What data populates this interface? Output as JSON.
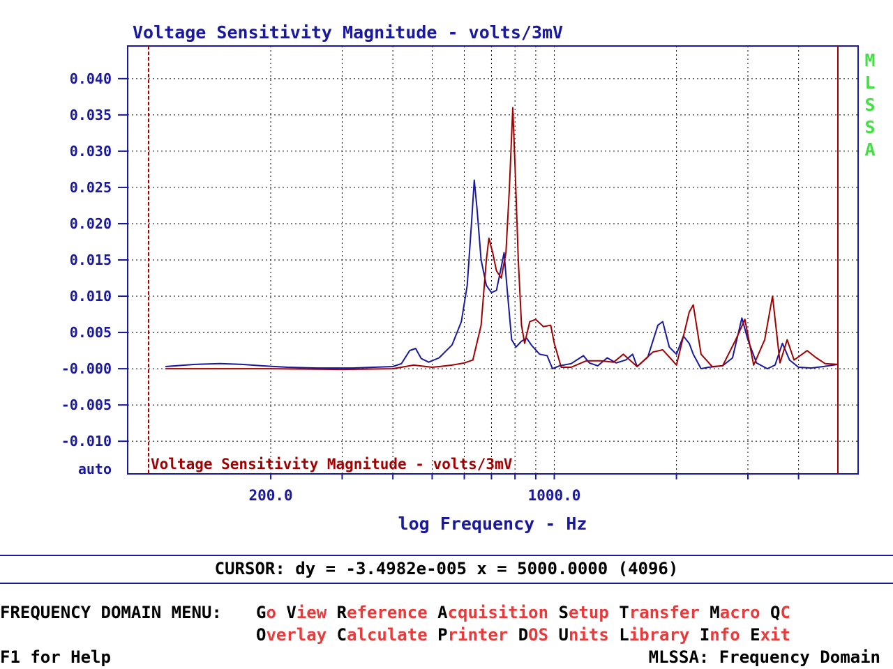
{
  "colors": {
    "blue": "#1818a0",
    "red": "#a00000",
    "green": "#40e040",
    "menu_hot": "#000000",
    "menu_rest": "#e83a3a",
    "grid": "#000000"
  },
  "brand_vertical": "MLSSA",
  "chart_data": {
    "type": "line",
    "title": "Voltage Sensitivity Magnitude - volts/3mV",
    "overlay_title": "Voltage Sensitivity Magnitude - volts/3mV",
    "xlabel": "log Frequency - Hz",
    "x_scale": "log",
    "xlim": [
      100,
      5000
    ],
    "x_ticks": [
      200,
      1000
    ],
    "x_tick_labels": [
      "200.0",
      "1000.0"
    ],
    "ylim": [
      -0.0145,
      0.0445
    ],
    "y_ticks": [
      0.04,
      0.035,
      0.03,
      0.025,
      0.02,
      0.015,
      0.01,
      0.005,
      0.0,
      -0.005,
      -0.01
    ],
    "y_tick_labels": [
      "0.040",
      "0.035",
      "0.030",
      "0.025",
      "0.020",
      "0.015",
      "0.010",
      "0.005",
      "-0.000",
      "-0.005",
      "-0.010"
    ],
    "y_bottom_label": "auto",
    "grid": true,
    "series": [
      {
        "color": "#1818a0",
        "points": [
          [
            110,
            0.0003
          ],
          [
            130,
            0.0006
          ],
          [
            150,
            0.0007
          ],
          [
            170,
            0.0006
          ],
          [
            190,
            0.0004
          ],
          [
            220,
            0.0002
          ],
          [
            260,
            0.0001
          ],
          [
            320,
            0.0001
          ],
          [
            400,
            0.0003
          ],
          [
            420,
            0.0007
          ],
          [
            440,
            0.0025
          ],
          [
            455,
            0.0028
          ],
          [
            470,
            0.0014
          ],
          [
            490,
            0.0009
          ],
          [
            520,
            0.0015
          ],
          [
            560,
            0.0033
          ],
          [
            590,
            0.0065
          ],
          [
            610,
            0.0115
          ],
          [
            625,
            0.02
          ],
          [
            635,
            0.026
          ],
          [
            645,
            0.022
          ],
          [
            660,
            0.015
          ],
          [
            680,
            0.0115
          ],
          [
            700,
            0.0105
          ],
          [
            720,
            0.0108
          ],
          [
            740,
            0.014
          ],
          [
            752,
            0.016
          ],
          [
            765,
            0.011
          ],
          [
            785,
            0.004
          ],
          [
            805,
            0.003
          ],
          [
            830,
            0.0038
          ],
          [
            855,
            0.0042
          ],
          [
            880,
            0.0032
          ],
          [
            920,
            0.002
          ],
          [
            960,
            0.0018
          ],
          [
            990,
            0.0
          ],
          [
            1030,
            0.0004
          ],
          [
            1100,
            0.0007
          ],
          [
            1180,
            0.0018
          ],
          [
            1220,
            0.0008
          ],
          [
            1280,
            0.0004
          ],
          [
            1350,
            0.0015
          ],
          [
            1420,
            0.0008
          ],
          [
            1500,
            0.0012
          ],
          [
            1560,
            0.002
          ],
          [
            1600,
            0.0003
          ],
          [
            1700,
            0.0016
          ],
          [
            1800,
            0.006
          ],
          [
            1850,
            0.0065
          ],
          [
            1920,
            0.003
          ],
          [
            2000,
            0.002
          ],
          [
            2080,
            0.0045
          ],
          [
            2150,
            0.0035
          ],
          [
            2200,
            0.002
          ],
          [
            2300,
            0.0
          ],
          [
            2400,
            0.0002
          ],
          [
            2600,
            0.0004
          ],
          [
            2750,
            0.0015
          ],
          [
            2900,
            0.007
          ],
          [
            3000,
            0.004
          ],
          [
            3150,
            0.0008
          ],
          [
            3350,
            0.0
          ],
          [
            3500,
            0.0005
          ],
          [
            3650,
            0.0035
          ],
          [
            3800,
            0.0012
          ],
          [
            4000,
            0.0002
          ],
          [
            4300,
            0.0001
          ],
          [
            4600,
            0.0003
          ],
          [
            5000,
            0.0006
          ]
        ]
      },
      {
        "color": "#a00000",
        "points": [
          [
            110,
            0.0
          ],
          [
            200,
            0.0
          ],
          [
            300,
            -0.0001
          ],
          [
            400,
            0.0
          ],
          [
            450,
            0.0005
          ],
          [
            500,
            0.0002
          ],
          [
            560,
            0.0005
          ],
          [
            600,
            0.0008
          ],
          [
            630,
            0.0012
          ],
          [
            660,
            0.006
          ],
          [
            680,
            0.015
          ],
          [
            690,
            0.018
          ],
          [
            705,
            0.016
          ],
          [
            720,
            0.0135
          ],
          [
            740,
            0.0125
          ],
          [
            760,
            0.016
          ],
          [
            775,
            0.025
          ],
          [
            790,
            0.036
          ],
          [
            800,
            0.028
          ],
          [
            815,
            0.015
          ],
          [
            830,
            0.006
          ],
          [
            845,
            0.0035
          ],
          [
            870,
            0.0065
          ],
          [
            900,
            0.0068
          ],
          [
            940,
            0.0058
          ],
          [
            980,
            0.006
          ],
          [
            1000,
            0.0035
          ],
          [
            1040,
            0.0002
          ],
          [
            1100,
            0.0002
          ],
          [
            1200,
            0.0011
          ],
          [
            1300,
            0.0011
          ],
          [
            1400,
            0.0009
          ],
          [
            1480,
            0.002
          ],
          [
            1600,
            0.0003
          ],
          [
            1750,
            0.0023
          ],
          [
            1850,
            0.0026
          ],
          [
            1950,
            0.0012
          ],
          [
            2000,
            0.0005
          ],
          [
            2150,
            0.0078
          ],
          [
            2200,
            0.0088
          ],
          [
            2300,
            0.002
          ],
          [
            2450,
            0.0003
          ],
          [
            2600,
            0.0004
          ],
          [
            2800,
            0.004
          ],
          [
            2950,
            0.0068
          ],
          [
            3100,
            0.0005
          ],
          [
            3300,
            0.004
          ],
          [
            3450,
            0.01
          ],
          [
            3600,
            0.0008
          ],
          [
            3750,
            0.004
          ],
          [
            3900,
            0.0012
          ],
          [
            4200,
            0.0025
          ],
          [
            4400,
            0.0016
          ],
          [
            4650,
            0.0007
          ],
          [
            5000,
            0.0006
          ]
        ]
      }
    ]
  },
  "cursor_readout": "CURSOR: dy = -3.4982e-005 x = 5000.0000 (4096)",
  "menu": {
    "title": "FREQUENCY DOMAIN MENU:",
    "row1": [
      {
        "hot": "G",
        "rest": "o"
      },
      {
        "hot": "V",
        "rest": "iew"
      },
      {
        "hot": "R",
        "rest": "eference"
      },
      {
        "hot": "A",
        "rest": "cquisition"
      },
      {
        "hot": "S",
        "rest": "etup"
      },
      {
        "hot": "T",
        "rest": "ransfer"
      },
      {
        "hot": "M",
        "rest": "acro"
      },
      {
        "hot": "Q",
        "rest": "C"
      }
    ],
    "row2": [
      {
        "hot": "O",
        "rest": "verlay"
      },
      {
        "hot": "C",
        "rest": "alculate"
      },
      {
        "hot": "P",
        "rest": "rinter"
      },
      {
        "hot": "D",
        "rest": "OS"
      },
      {
        "hot": "U",
        "rest": "nits"
      },
      {
        "hot": "L",
        "rest": "ibrary"
      },
      {
        "hot": "I",
        "rest": "nfo"
      },
      {
        "hot": "E",
        "rest": "xit"
      }
    ]
  },
  "status": {
    "help": "F1 for Help",
    "mode": "MLSSA: Frequency Domain"
  }
}
